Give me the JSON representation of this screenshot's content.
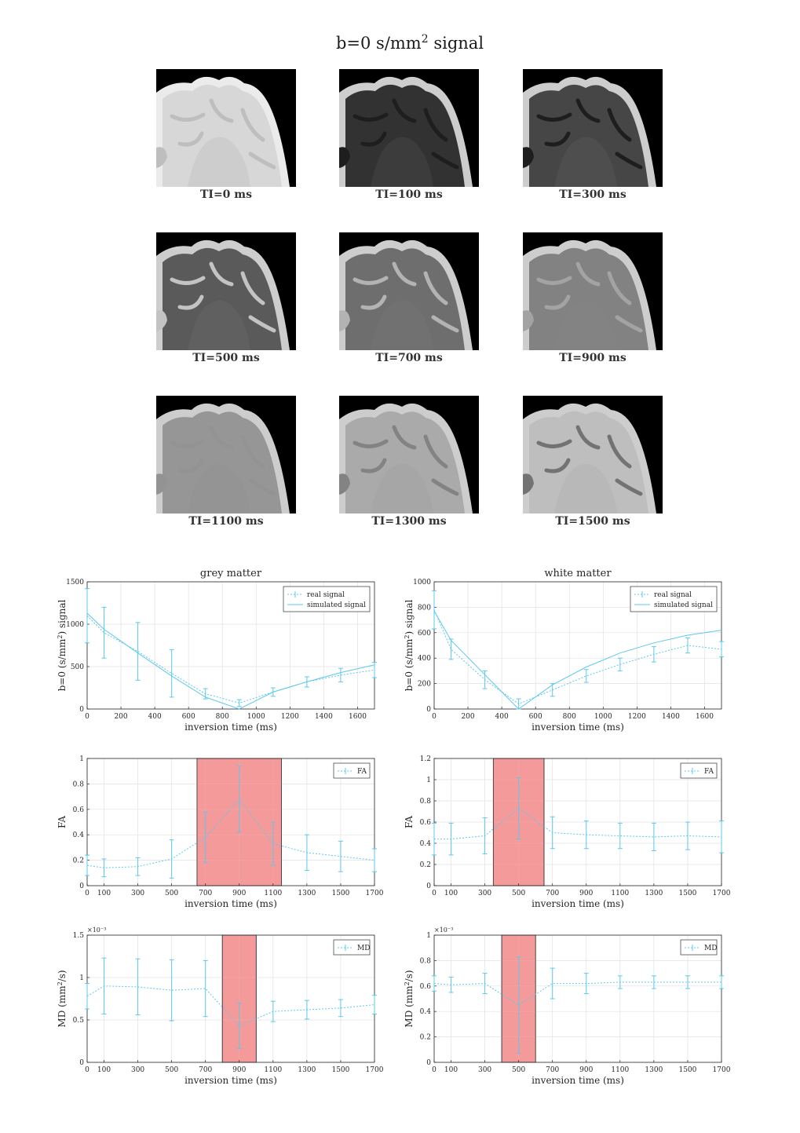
{
  "figure_title": {
    "prefix": "b=0  s/mm",
    "sup": "2",
    "suffix": "  signal"
  },
  "images": [
    {
      "label": "TI=0 ms",
      "ti": 0
    },
    {
      "label": "TI=100 ms",
      "ti": 100
    },
    {
      "label": "TI=300 ms",
      "ti": 300
    },
    {
      "label": "TI=500 ms",
      "ti": 500
    },
    {
      "label": "TI=700 ms",
      "ti": 700
    },
    {
      "label": "TI=900 ms",
      "ti": 900
    },
    {
      "label": "TI=1100 ms",
      "ti": 1100
    },
    {
      "label": "TI=1300 ms",
      "ti": 1300
    },
    {
      "label": "TI=1500 ms",
      "ti": 1500
    }
  ],
  "chart_data": [
    {
      "id": "gm_signal",
      "type": "line",
      "title": "grey matter",
      "xlabel": "inversion time (ms)",
      "ylabel": "b=0 (s/mm^2) signal",
      "xlim": [
        0,
        1700
      ],
      "ylim": [
        0,
        1500
      ],
      "xticks": [
        0,
        200,
        400,
        600,
        800,
        1000,
        1200,
        1400,
        1600
      ],
      "yticks": [
        0,
        500,
        1000,
        1500
      ],
      "grid": true,
      "legend": "top-right",
      "series": [
        {
          "name": "real signal",
          "style": "dotted-errorbar",
          "x": [
            0,
            100,
            300,
            500,
            700,
            900,
            1100,
            1300,
            1500,
            1700
          ],
          "y": [
            1100,
            900,
            680,
            420,
            180,
            70,
            200,
            320,
            400,
            460
          ],
          "err": [
            320,
            300,
            340,
            280,
            60,
            40,
            50,
            60,
            80,
            90
          ]
        },
        {
          "name": "simulated signal",
          "style": "solid",
          "x": [
            0,
            100,
            300,
            500,
            700,
            900,
            1100,
            1300,
            1500,
            1700
          ],
          "y": [
            1130,
            940,
            660,
            390,
            140,
            0,
            200,
            320,
            430,
            520
          ]
        }
      ]
    },
    {
      "id": "wm_signal",
      "type": "line",
      "title": "white matter",
      "xlabel": "inversion time (ms)",
      "ylabel": "b=0 (s/mm^2) signal",
      "xlim": [
        0,
        1700
      ],
      "ylim": [
        0,
        1000
      ],
      "xticks": [
        0,
        200,
        400,
        600,
        800,
        1000,
        1200,
        1400,
        1600
      ],
      "yticks": [
        0,
        200,
        400,
        600,
        800,
        1000
      ],
      "grid": true,
      "legend": "top-right",
      "series": [
        {
          "name": "real signal",
          "style": "dotted-errorbar",
          "x": [
            0,
            100,
            300,
            500,
            700,
            900,
            1100,
            1300,
            1500,
            1700
          ],
          "y": [
            780,
            470,
            230,
            40,
            150,
            260,
            350,
            430,
            500,
            470
          ],
          "err": [
            150,
            80,
            70,
            40,
            50,
            50,
            50,
            60,
            60,
            60
          ]
        },
        {
          "name": "simulated signal",
          "style": "solid",
          "x": [
            0,
            100,
            300,
            500,
            700,
            900,
            1100,
            1300,
            1500,
            1700
          ],
          "y": [
            770,
            540,
            270,
            0,
            190,
            330,
            440,
            520,
            580,
            620
          ]
        }
      ]
    },
    {
      "id": "gm_fa",
      "type": "line",
      "title": "",
      "xlabel": "inversion time (ms)",
      "ylabel": "FA",
      "xlim": [
        0,
        1700
      ],
      "ylim": [
        0,
        1
      ],
      "xticks": [
        0,
        100,
        300,
        500,
        700,
        900,
        1100,
        1300,
        1500,
        1700
      ],
      "yticks": [
        0,
        0.2,
        0.4,
        0.6,
        0.8,
        1
      ],
      "grid": true,
      "legend": "top-right",
      "highlight": [
        650,
        1150
      ],
      "series": [
        {
          "name": "FA",
          "style": "dotted-errorbar",
          "x": [
            0,
            100,
            300,
            500,
            700,
            900,
            1100,
            1300,
            1500,
            1700
          ],
          "y": [
            0.16,
            0.14,
            0.15,
            0.21,
            0.38,
            0.68,
            0.33,
            0.26,
            0.23,
            0.2
          ],
          "err": [
            0.08,
            0.07,
            0.07,
            0.15,
            0.2,
            0.26,
            0.17,
            0.14,
            0.12,
            0.09
          ]
        }
      ]
    },
    {
      "id": "wm_fa",
      "type": "line",
      "title": "",
      "xlabel": "inversion time (ms)",
      "ylabel": "FA",
      "xlim": [
        0,
        1700
      ],
      "ylim": [
        0,
        1.2
      ],
      "xticks": [
        0,
        100,
        300,
        500,
        700,
        900,
        1100,
        1300,
        1500,
        1700
      ],
      "yticks": [
        0,
        0.2,
        0.4,
        0.6,
        0.8,
        1,
        1.2
      ],
      "grid": true,
      "legend": "top-right",
      "highlight": [
        350,
        650
      ],
      "series": [
        {
          "name": "FA",
          "style": "dotted-errorbar",
          "x": [
            0,
            100,
            300,
            500,
            700,
            900,
            1100,
            1300,
            1500,
            1700
          ],
          "y": [
            0.44,
            0.44,
            0.47,
            0.73,
            0.5,
            0.48,
            0.47,
            0.46,
            0.47,
            0.46
          ],
          "err": [
            0.15,
            0.15,
            0.17,
            0.29,
            0.15,
            0.13,
            0.12,
            0.13,
            0.13,
            0.15
          ]
        }
      ]
    },
    {
      "id": "gm_md",
      "type": "line",
      "title": "",
      "xlabel": "inversion time (ms)",
      "ylabel": "MD (mm^2/s)",
      "exponent": "×10⁻³",
      "xlim": [
        0,
        1700
      ],
      "ylim": [
        0,
        1.5
      ],
      "xticks": [
        0,
        100,
        300,
        500,
        700,
        900,
        1100,
        1300,
        1500,
        1700
      ],
      "yticks": [
        0,
        0.5,
        1,
        1.5
      ],
      "grid": true,
      "legend": "top-right",
      "highlight": [
        800,
        1000
      ],
      "series": [
        {
          "name": "MD",
          "style": "dotted-errorbar",
          "x": [
            0,
            100,
            300,
            500,
            700,
            900,
            1100,
            1300,
            1500,
            1700
          ],
          "y": [
            0.78,
            0.9,
            0.89,
            0.85,
            0.87,
            0.43,
            0.6,
            0.62,
            0.64,
            0.68
          ],
          "err": [
            0.15,
            0.33,
            0.33,
            0.36,
            0.33,
            0.27,
            0.12,
            0.11,
            0.1,
            0.11
          ]
        }
      ]
    },
    {
      "id": "wm_md",
      "type": "line",
      "title": "",
      "xlabel": "inversion time (ms)",
      "ylabel": "MD (mm^2/s)",
      "exponent": "×10⁻³",
      "xlim": [
        0,
        1700
      ],
      "ylim": [
        0,
        1
      ],
      "xticks": [
        0,
        100,
        300,
        500,
        700,
        900,
        1100,
        1300,
        1500,
        1700
      ],
      "yticks": [
        0,
        0.2,
        0.4,
        0.6,
        0.8,
        1
      ],
      "grid": true,
      "legend": "top-right",
      "highlight": [
        400,
        600
      ],
      "series": [
        {
          "name": "MD",
          "style": "dotted-errorbar",
          "x": [
            0,
            100,
            300,
            500,
            700,
            900,
            1100,
            1300,
            1500,
            1700
          ],
          "y": [
            0.62,
            0.61,
            0.62,
            0.45,
            0.62,
            0.62,
            0.63,
            0.63,
            0.63,
            0.63
          ],
          "err": [
            0.06,
            0.06,
            0.08,
            0.38,
            0.12,
            0.08,
            0.05,
            0.05,
            0.05,
            0.05
          ]
        }
      ]
    }
  ],
  "colors": {
    "series": "#5cc8ec",
    "highlight": "#f49a9a",
    "axis": "#262626",
    "grid": "#e2e2e2"
  }
}
